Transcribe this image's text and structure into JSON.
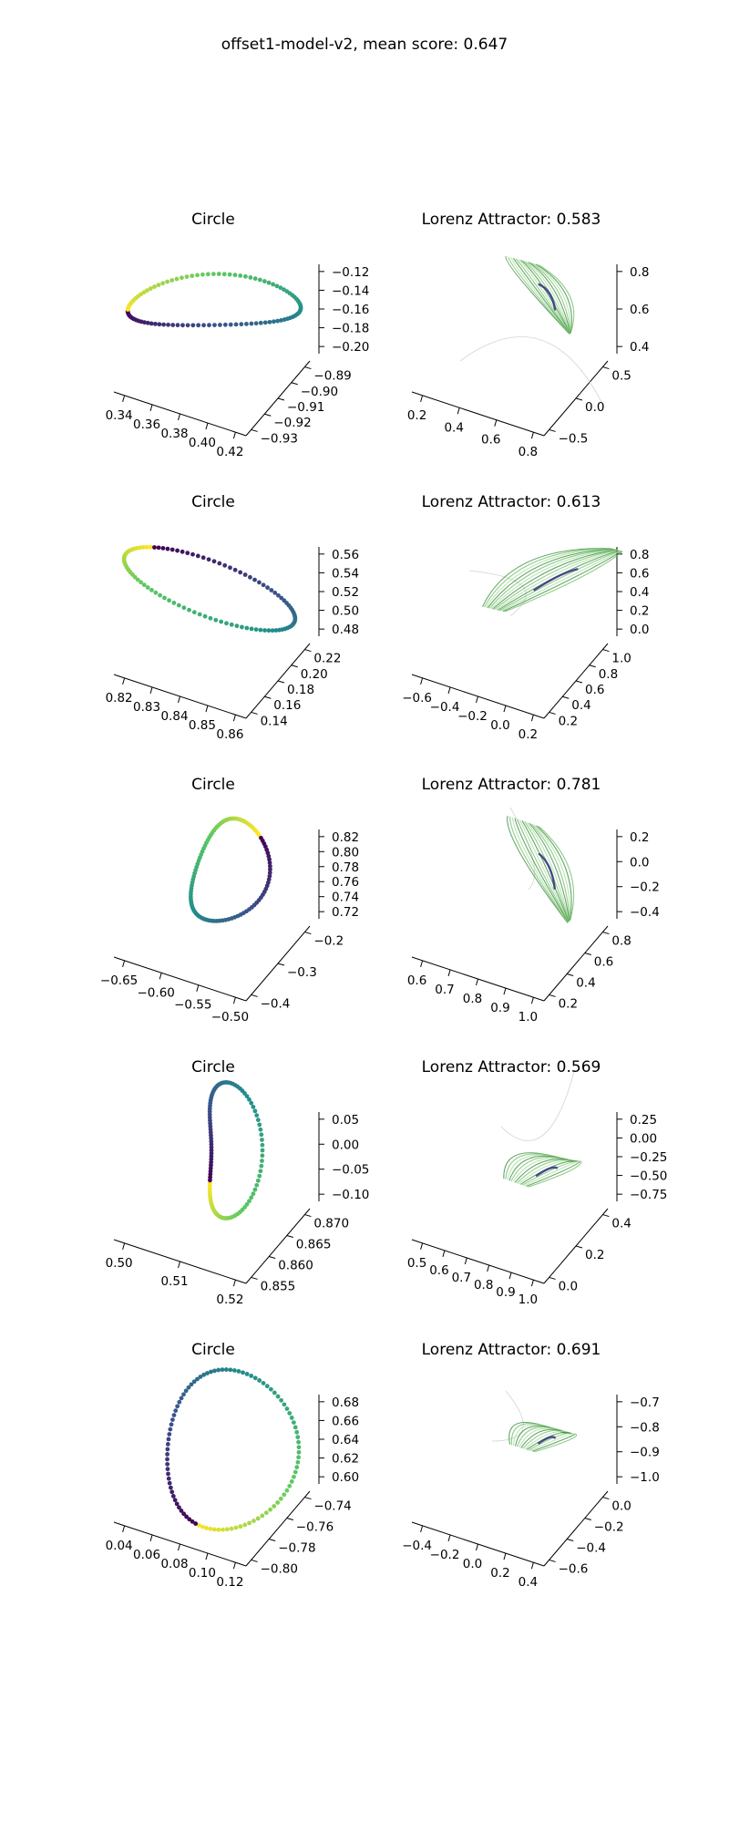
{
  "figure": {
    "suptitle": "offset1-model-v2, mean score: 0.647"
  },
  "chart_data": [
    {
      "type": "scatter",
      "projection": "3d",
      "title": "Circle",
      "axes": {
        "x_ticks": [
          "0.34",
          "0.36",
          "0.38",
          "0.40",
          "0.42"
        ],
        "y_ticks": [
          "−0.93",
          "−0.92",
          "−0.91",
          "−0.90",
          "−0.89"
        ],
        "z_ticks": [
          "−0.20",
          "−0.18",
          "−0.16",
          "−0.14",
          "−0.12"
        ],
        "xlim": [
          0.33,
          0.43
        ],
        "ylim": [
          -0.935,
          -0.885
        ],
        "zlim": [
          -0.205,
          -0.115
        ]
      },
      "colormap": "viridis",
      "point_count": 100,
      "loop_shape": "teardrop, point toward right"
    },
    {
      "type": "line",
      "projection": "3d",
      "title": "Lorenz Attractor: 0.583",
      "axes": {
        "x_ticks": [
          "0.2",
          "0.4",
          "0.6",
          "0.8"
        ],
        "y_ticks": [
          "−0.5",
          "0.0",
          "0.5"
        ],
        "z_ticks": [
          "0.4",
          "0.6",
          "0.8"
        ]
      },
      "colormap": "greens with dark-blue core",
      "score": 0.583
    },
    {
      "type": "scatter",
      "projection": "3d",
      "title": "Circle",
      "axes": {
        "x_ticks": [
          "0.82",
          "0.83",
          "0.84",
          "0.85",
          "0.86"
        ],
        "y_ticks": [
          "0.14",
          "0.16",
          "0.18",
          "0.20",
          "0.22"
        ],
        "z_ticks": [
          "0.48",
          "0.50",
          "0.52",
          "0.54",
          "0.56"
        ]
      },
      "colormap": "viridis",
      "point_count": 100,
      "loop_shape": "elongated diagonal ellipse"
    },
    {
      "type": "line",
      "projection": "3d",
      "title": "Lorenz Attractor: 0.613",
      "axes": {
        "x_ticks": [
          "−0.6",
          "−0.4",
          "−0.2",
          "0.0",
          "0.2"
        ],
        "y_ticks": [
          "0.2",
          "0.4",
          "0.6",
          "0.8",
          "1.0"
        ],
        "z_ticks": [
          "0.0",
          "0.2",
          "0.4",
          "0.6",
          "0.8"
        ]
      },
      "colormap": "greens with dark-blue core",
      "score": 0.613
    },
    {
      "type": "scatter",
      "projection": "3d",
      "title": "Circle",
      "axes": {
        "x_ticks": [
          "−0.65",
          "−0.60",
          "−0.55",
          "−0.50"
        ],
        "y_ticks": [
          "−0.4",
          "−0.3",
          "−0.2"
        ],
        "z_ticks": [
          "0.72",
          "0.74",
          "0.76",
          "0.78",
          "0.80",
          "0.82"
        ]
      },
      "colormap": "viridis",
      "point_count": 100,
      "loop_shape": "rounded triangle"
    },
    {
      "type": "line",
      "projection": "3d",
      "title": "Lorenz Attractor: 0.781",
      "axes": {
        "x_ticks": [
          "0.6",
          "0.7",
          "0.8",
          "0.9",
          "1.0"
        ],
        "y_ticks": [
          "0.2",
          "0.4",
          "0.6",
          "0.8"
        ],
        "z_ticks": [
          "−0.4",
          "−0.2",
          "0.0",
          "0.2"
        ]
      },
      "colormap": "greens with dark-blue core",
      "score": 0.781
    },
    {
      "type": "scatter",
      "projection": "3d",
      "title": "Circle",
      "axes": {
        "x_ticks": [
          "0.50",
          "0.51",
          "0.52"
        ],
        "y_ticks": [
          "0.855",
          "0.860",
          "0.865",
          "0.870"
        ],
        "z_ticks": [
          "−0.10",
          "−0.05",
          "0.00",
          "0.05"
        ]
      },
      "colormap": "viridis",
      "point_count": 100,
      "loop_shape": "tall thin triangle"
    },
    {
      "type": "line",
      "projection": "3d",
      "title": "Lorenz Attractor: 0.569",
      "axes": {
        "x_ticks": [
          "0.5",
          "0.6",
          "0.7",
          "0.8",
          "0.9",
          "1.0"
        ],
        "y_ticks": [
          "0.0",
          "0.2",
          "0.4"
        ],
        "z_ticks": [
          "−0.75",
          "−0.50",
          "−0.25",
          "0.00",
          "0.25"
        ]
      },
      "colormap": "greens with dark-blue core",
      "score": 0.569
    },
    {
      "type": "scatter",
      "projection": "3d",
      "title": "Circle",
      "axes": {
        "x_ticks": [
          "0.04",
          "0.06",
          "0.08",
          "0.10",
          "0.12"
        ],
        "y_ticks": [
          "−0.80",
          "−0.78",
          "−0.76",
          "−0.74"
        ],
        "z_ticks": [
          "0.60",
          "0.62",
          "0.64",
          "0.66",
          "0.68"
        ]
      },
      "colormap": "viridis",
      "point_count": 100,
      "loop_shape": "large oval"
    },
    {
      "type": "line",
      "projection": "3d",
      "title": "Lorenz Attractor: 0.691",
      "axes": {
        "x_ticks": [
          "−0.4",
          "−0.2",
          "0.0",
          "0.2",
          "0.4"
        ],
        "y_ticks": [
          "−0.6",
          "−0.4",
          "−0.2",
          "0.0"
        ],
        "z_ticks": [
          "−1.0",
          "−0.9",
          "−0.8",
          "−0.7"
        ]
      },
      "colormap": "greens with dark-blue core",
      "score": 0.691
    }
  ]
}
